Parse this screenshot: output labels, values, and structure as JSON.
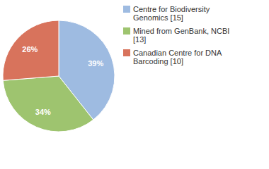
{
  "chart_data": {
    "type": "pie",
    "categories": [
      "Centre for Biodiversity Genomics [15]",
      "Mined from GenBank, NCBI [13]",
      "Canadian Centre for DNA Barcoding [10]"
    ],
    "values": [
      39,
      34,
      26
    ],
    "value_labels": [
      "39%",
      "34%",
      "26%"
    ],
    "colors": [
      "#9ebbe1",
      "#9ec46f",
      "#d8735c"
    ],
    "data_labels": true,
    "legend": "right"
  }
}
